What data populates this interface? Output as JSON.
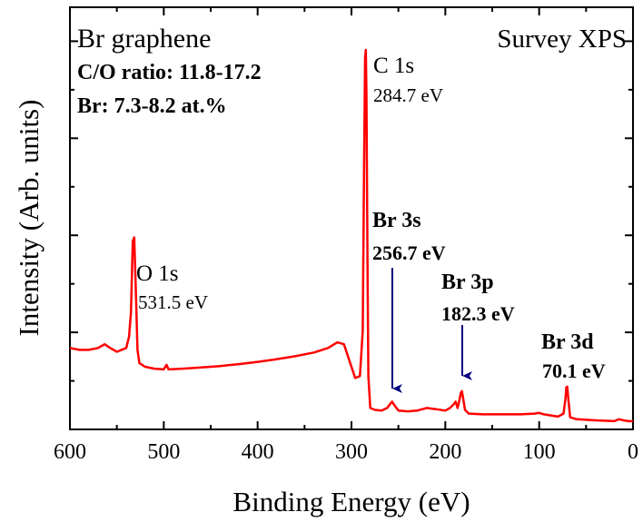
{
  "chart_data": {
    "type": "line",
    "title": "Survey XPS",
    "xlabel": "Binding Energy (eV)",
    "ylabel": "Intensity (Arb. units)",
    "xlim": [
      600,
      0
    ],
    "x_reversed": true,
    "y_ticks_labeled": false,
    "xticks": [
      600,
      500,
      400,
      300,
      200,
      100,
      0
    ],
    "xtick_labels": [
      "600",
      "500",
      "400",
      "300",
      "200",
      "100",
      "0"
    ],
    "grid": false,
    "legend": "none",
    "series": [
      {
        "color": "#ff0000",
        "points": [
          [
            600,
            0.205
          ],
          [
            590,
            0.2
          ],
          [
            580,
            0.2
          ],
          [
            570,
            0.205
          ],
          [
            563,
            0.215
          ],
          [
            557,
            0.205
          ],
          [
            550,
            0.195
          ],
          [
            545,
            0.2
          ],
          [
            540,
            0.205
          ],
          [
            537,
            0.235
          ],
          [
            535,
            0.3
          ],
          [
            533,
            0.49
          ],
          [
            531.5,
            0.5
          ],
          [
            530,
            0.38
          ],
          [
            528,
            0.2
          ],
          [
            526,
            0.165
          ],
          [
            520,
            0.155
          ],
          [
            510,
            0.15
          ],
          [
            500,
            0.148
          ],
          [
            497,
            0.16
          ],
          [
            495,
            0.148
          ],
          [
            480,
            0.15
          ],
          [
            460,
            0.153
          ],
          [
            440,
            0.157
          ],
          [
            420,
            0.162
          ],
          [
            400,
            0.168
          ],
          [
            380,
            0.175
          ],
          [
            360,
            0.183
          ],
          [
            340,
            0.193
          ],
          [
            325,
            0.205
          ],
          [
            315,
            0.22
          ],
          [
            308,
            0.215
          ],
          [
            302,
            0.17
          ],
          [
            296,
            0.125
          ],
          [
            291,
            0.13
          ],
          [
            288,
            0.25
          ],
          [
            286.5,
            0.7
          ],
          [
            285.5,
            0.98
          ],
          [
            284.7,
            1.0
          ],
          [
            284,
            0.88
          ],
          [
            283,
            0.45
          ],
          [
            282,
            0.13
          ],
          [
            280,
            0.045
          ],
          [
            275,
            0.04
          ],
          [
            268,
            0.038
          ],
          [
            262,
            0.045
          ],
          [
            258,
            0.058
          ],
          [
            256.7,
            0.062
          ],
          [
            255,
            0.055
          ],
          [
            250,
            0.038
          ],
          [
            240,
            0.036
          ],
          [
            230,
            0.038
          ],
          [
            220,
            0.045
          ],
          [
            210,
            0.042
          ],
          [
            200,
            0.038
          ],
          [
            195,
            0.045
          ],
          [
            191,
            0.055
          ],
          [
            189,
            0.062
          ],
          [
            187,
            0.045
          ],
          [
            185,
            0.065
          ],
          [
            183.5,
            0.085
          ],
          [
            182.3,
            0.09
          ],
          [
            181,
            0.07
          ],
          [
            179,
            0.04
          ],
          [
            175,
            0.03
          ],
          [
            160,
            0.028
          ],
          [
            140,
            0.028
          ],
          [
            120,
            0.028
          ],
          [
            105,
            0.03
          ],
          [
            100,
            0.032
          ],
          [
            95,
            0.028
          ],
          [
            80,
            0.022
          ],
          [
            74,
            0.03
          ],
          [
            72,
            0.07
          ],
          [
            71,
            0.1
          ],
          [
            70.1,
            0.102
          ],
          [
            69,
            0.07
          ],
          [
            67,
            0.02
          ],
          [
            60,
            0.015
          ],
          [
            40,
            0.012
          ],
          [
            20,
            0.01
          ],
          [
            15,
            0.015
          ],
          [
            10,
            0.012
          ],
          [
            5,
            0.01
          ],
          [
            0,
            0.01
          ]
        ]
      }
    ],
    "annotations": {
      "sample": "Br graphene",
      "co_ratio": "C/O ratio: 11.8-17.2",
      "br_content": "Br: 7.3-8.2 at.%",
      "peaks": [
        {
          "name": "O 1s",
          "energy": "531.5 eV",
          "x": 531.5,
          "bold": false,
          "arrow": false
        },
        {
          "name": "C 1s",
          "energy": "284.7 eV",
          "x": 284.7,
          "bold": false,
          "arrow": false
        },
        {
          "name": "Br 3s",
          "energy": "256.7 eV",
          "x": 256.7,
          "bold": true,
          "arrow": true
        },
        {
          "name": "Br 3p",
          "energy": "182.3 eV",
          "x": 182.3,
          "bold": true,
          "arrow": true
        },
        {
          "name": "Br 3d",
          "energy": "70.1 eV",
          "x": 70.1,
          "bold": true,
          "arrow": false
        }
      ]
    },
    "colors": {
      "curve": "#ff0000",
      "arrow": "#00007f",
      "axes": "#000000"
    }
  }
}
